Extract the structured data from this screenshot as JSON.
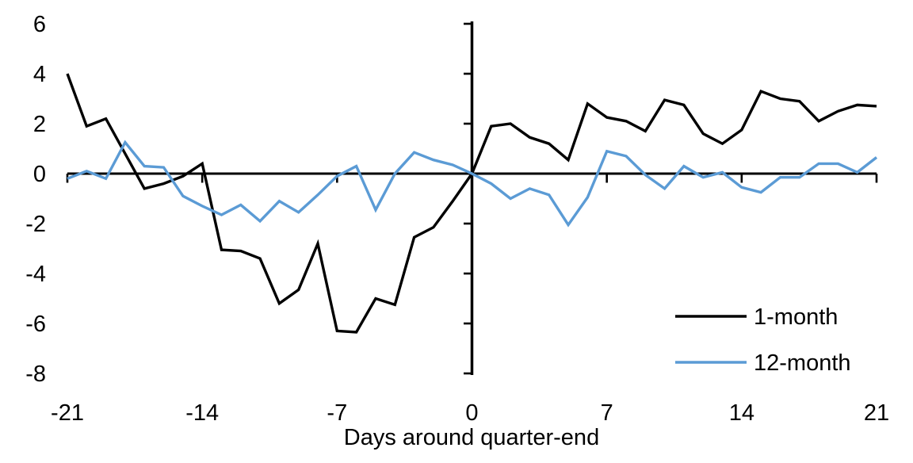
{
  "chart_data": {
    "type": "line",
    "title": "",
    "xlabel": "Days around quarter-end",
    "ylabel": "",
    "xlim": [
      -21,
      21
    ],
    "ylim": [
      -8,
      6
    ],
    "x_ticks": [
      -21,
      -14,
      -7,
      0,
      7,
      14,
      21
    ],
    "y_ticks": [
      6,
      4,
      2,
      0,
      -2,
      -4,
      -6,
      -8
    ],
    "grid": false,
    "legend_position": "inside-bottom-right",
    "axis_color": "#000000",
    "x": [
      -21,
      -20,
      -19,
      -18,
      -17,
      -16,
      -15,
      -14,
      -13,
      -12,
      -11,
      -10,
      -9,
      -8,
      -7,
      -6,
      -5,
      -4,
      -3,
      -2,
      -1,
      0,
      1,
      2,
      3,
      4,
      5,
      6,
      7,
      8,
      9,
      10,
      11,
      12,
      13,
      14,
      15,
      16,
      17,
      18,
      19,
      20,
      21
    ],
    "series": [
      {
        "name": "1-month",
        "color": "#000000",
        "values": [
          4.0,
          1.9,
          2.2,
          0.8,
          -0.6,
          -0.4,
          -0.1,
          0.4,
          -3.05,
          -3.1,
          -3.4,
          -5.2,
          -4.65,
          -2.8,
          -6.3,
          -6.35,
          -5.0,
          -5.25,
          -2.55,
          -2.15,
          -1.1,
          0.0,
          1.9,
          2.0,
          1.45,
          1.2,
          0.55,
          2.8,
          2.25,
          2.1,
          1.7,
          2.95,
          2.75,
          1.6,
          1.2,
          1.75,
          3.3,
          3.0,
          2.9,
          2.1,
          2.5,
          2.75,
          2.7
        ]
      },
      {
        "name": "12-month",
        "color": "#5B9BD5",
        "values": [
          -0.2,
          0.1,
          -0.2,
          1.25,
          0.3,
          0.25,
          -0.9,
          -1.3,
          -1.65,
          -1.25,
          -1.9,
          -1.1,
          -1.55,
          -0.85,
          -0.1,
          0.3,
          -1.45,
          0.0,
          0.85,
          0.55,
          0.35,
          0.0,
          -0.4,
          -1.0,
          -0.6,
          -0.85,
          -2.05,
          -0.95,
          0.9,
          0.7,
          -0.05,
          -0.6,
          0.3,
          -0.15,
          0.05,
          -0.55,
          -0.75,
          -0.15,
          -0.15,
          0.4,
          0.4,
          0.05,
          0.65
        ]
      }
    ]
  }
}
